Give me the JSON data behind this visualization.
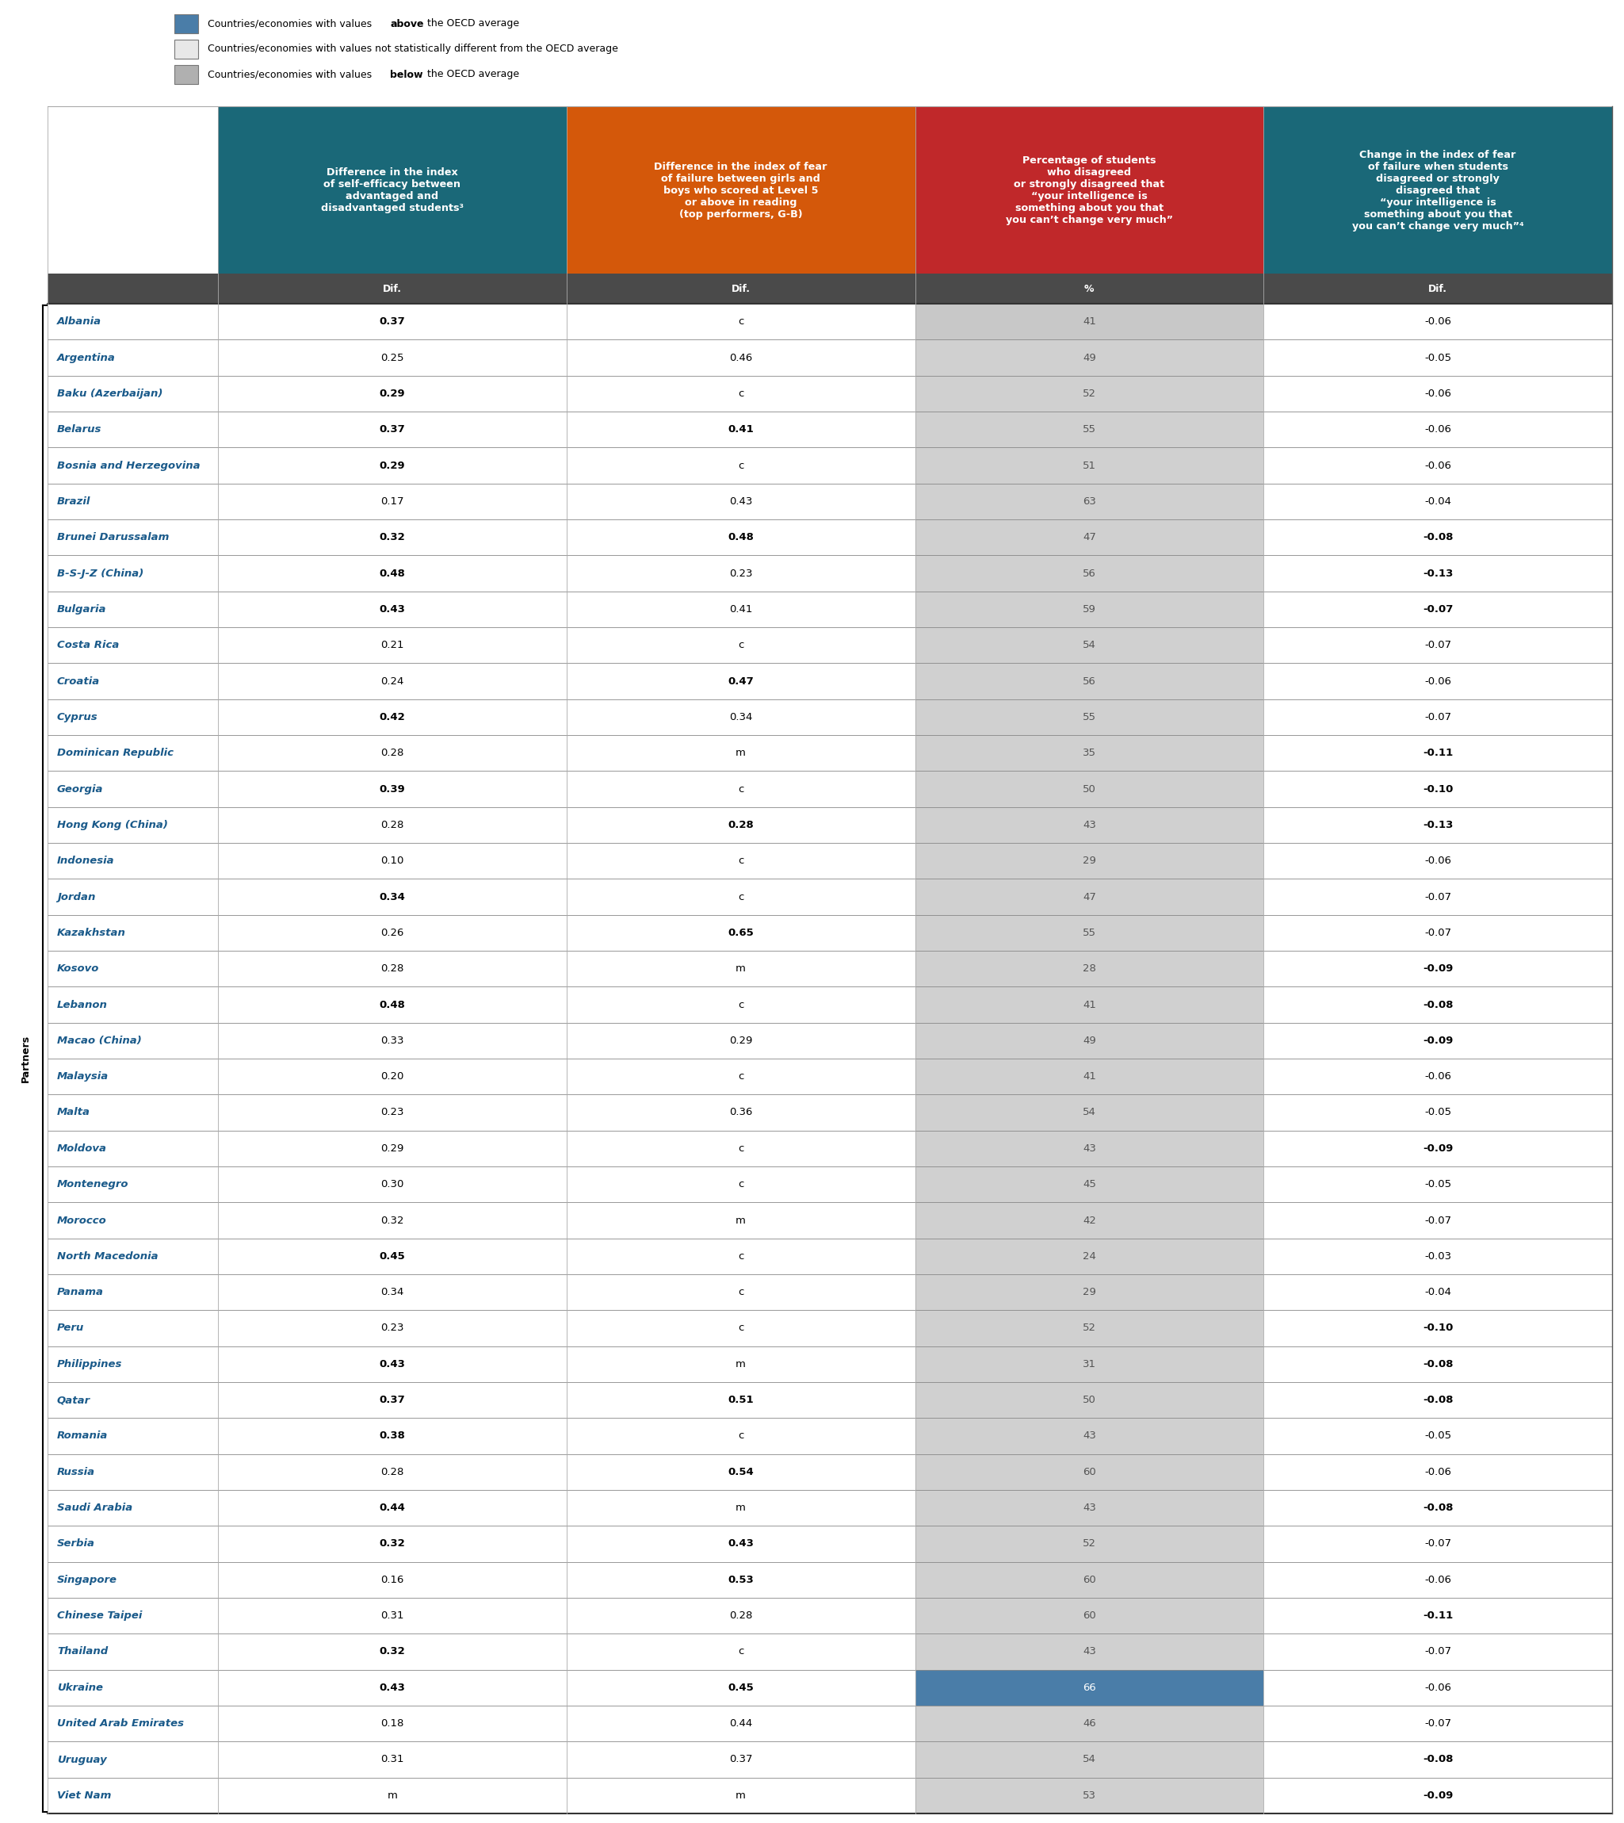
{
  "legend_colors": [
    "#4a7da8",
    "#e8e8e8",
    "#b0b0b0"
  ],
  "legend_texts": [
    [
      "Countries/economies with values ",
      "above",
      " the OECD average"
    ],
    [
      "Countries/economies with values not statistically different from the OECD average"
    ],
    [
      "Countries/economies with values ",
      "below",
      " the OECD average"
    ]
  ],
  "col_headers": [
    "Difference in the index\nof self-efficacy between\nadvantaged and\ndisadvantaged students³",
    "Difference in the index of fear\nof failure between girls and\nboys who scored at Level 5\nor above in reading\n(top performers, G-B)",
    "Percentage of students\nwho disagreed\nor strongly disagreed that\n“your intelligence is\nsomething about you that\nyou can’t change very much”",
    "Change in the index of fear\nof failure when students\ndisagreed or strongly\ndisagreed that\n“your intelligence is\nsomething about you that\nyou can’t change very much”⁴"
  ],
  "col_units": [
    "Dif.",
    "Dif.",
    "%",
    "Dif."
  ],
  "col_header_colors": [
    "#1a6878",
    "#d4580a",
    "#c0282a",
    "#1a6878"
  ],
  "col_unit_bg": "#4a4a4a",
  "rows": [
    {
      "country": "Albania",
      "c1": "0.37",
      "c2": "c",
      "c3": "41",
      "c4": "-0.06",
      "c1b": true,
      "c2b": false,
      "c3b": false,
      "c4b": false,
      "c3_bg": "gray_light"
    },
    {
      "country": "Argentina",
      "c1": "0.25",
      "c2": "0.46",
      "c3": "49",
      "c4": "-0.05",
      "c1b": false,
      "c2b": false,
      "c3b": false,
      "c4b": false,
      "c3_bg": "gray"
    },
    {
      "country": "Baku (Azerbaijan)",
      "c1": "0.29",
      "c2": "c",
      "c3": "52",
      "c4": "-0.06",
      "c1b": true,
      "c2b": false,
      "c3b": false,
      "c4b": false,
      "c3_bg": "gray"
    },
    {
      "country": "Belarus",
      "c1": "0.37",
      "c2": "0.41",
      "c3": "55",
      "c4": "-0.06",
      "c1b": true,
      "c2b": true,
      "c3b": false,
      "c4b": false,
      "c3_bg": "gray"
    },
    {
      "country": "Bosnia and Herzegovina",
      "c1": "0.29",
      "c2": "c",
      "c3": "51",
      "c4": "-0.06",
      "c1b": true,
      "c2b": false,
      "c3b": false,
      "c4b": false,
      "c3_bg": "gray"
    },
    {
      "country": "Brazil",
      "c1": "0.17",
      "c2": "0.43",
      "c3": "63",
      "c4": "-0.04",
      "c1b": false,
      "c2b": false,
      "c3b": false,
      "c4b": false,
      "c3_bg": "gray"
    },
    {
      "country": "Brunei Darussalam",
      "c1": "0.32",
      "c2": "0.48",
      "c3": "47",
      "c4": "-0.08",
      "c1b": true,
      "c2b": true,
      "c3b": false,
      "c4b": true,
      "c3_bg": "gray"
    },
    {
      "country": "B-S-J-Z (China)",
      "c1": "0.48",
      "c2": "0.23",
      "c3": "56",
      "c4": "-0.13",
      "c1b": true,
      "c2b": false,
      "c3b": false,
      "c4b": true,
      "c3_bg": "gray"
    },
    {
      "country": "Bulgaria",
      "c1": "0.43",
      "c2": "0.41",
      "c3": "59",
      "c4": "-0.07",
      "c1b": true,
      "c2b": false,
      "c3b": false,
      "c4b": true,
      "c3_bg": "gray"
    },
    {
      "country": "Costa Rica",
      "c1": "0.21",
      "c2": "c",
      "c3": "54",
      "c4": "-0.07",
      "c1b": false,
      "c2b": false,
      "c3b": false,
      "c4b": false,
      "c3_bg": "gray"
    },
    {
      "country": "Croatia",
      "c1": "0.24",
      "c2": "0.47",
      "c3": "56",
      "c4": "-0.06",
      "c1b": false,
      "c2b": true,
      "c3b": false,
      "c4b": false,
      "c3_bg": "gray"
    },
    {
      "country": "Cyprus",
      "c1": "0.42",
      "c2": "0.34",
      "c3": "55",
      "c4": "-0.07",
      "c1b": true,
      "c2b": false,
      "c3b": false,
      "c4b": false,
      "c3_bg": "gray"
    },
    {
      "country": "Dominican Republic",
      "c1": "0.28",
      "c2": "m",
      "c3": "35",
      "c4": "-0.11",
      "c1b": false,
      "c2b": false,
      "c3b": false,
      "c4b": true,
      "c3_bg": "gray"
    },
    {
      "country": "Georgia",
      "c1": "0.39",
      "c2": "c",
      "c3": "50",
      "c4": "-0.10",
      "c1b": true,
      "c2b": false,
      "c3b": false,
      "c4b": true,
      "c3_bg": "gray"
    },
    {
      "country": "Hong Kong (China)",
      "c1": "0.28",
      "c2": "0.28",
      "c3": "43",
      "c4": "-0.13",
      "c1b": false,
      "c2b": true,
      "c3b": false,
      "c4b": true,
      "c3_bg": "gray"
    },
    {
      "country": "Indonesia",
      "c1": "0.10",
      "c2": "c",
      "c3": "29",
      "c4": "-0.06",
      "c1b": false,
      "c2b": false,
      "c3b": false,
      "c4b": false,
      "c3_bg": "gray"
    },
    {
      "country": "Jordan",
      "c1": "0.34",
      "c2": "c",
      "c3": "47",
      "c4": "-0.07",
      "c1b": true,
      "c2b": false,
      "c3b": false,
      "c4b": false,
      "c3_bg": "gray"
    },
    {
      "country": "Kazakhstan",
      "c1": "0.26",
      "c2": "0.65",
      "c3": "55",
      "c4": "-0.07",
      "c1b": false,
      "c2b": true,
      "c3b": false,
      "c4b": false,
      "c3_bg": "gray"
    },
    {
      "country": "Kosovo",
      "c1": "0.28",
      "c2": "m",
      "c3": "28",
      "c4": "-0.09",
      "c1b": false,
      "c2b": false,
      "c3b": false,
      "c4b": true,
      "c3_bg": "gray"
    },
    {
      "country": "Lebanon",
      "c1": "0.48",
      "c2": "c",
      "c3": "41",
      "c4": "-0.08",
      "c1b": true,
      "c2b": false,
      "c3b": false,
      "c4b": true,
      "c3_bg": "gray"
    },
    {
      "country": "Macao (China)",
      "c1": "0.33",
      "c2": "0.29",
      "c3": "49",
      "c4": "-0.09",
      "c1b": false,
      "c2b": false,
      "c3b": false,
      "c4b": true,
      "c3_bg": "gray"
    },
    {
      "country": "Malaysia",
      "c1": "0.20",
      "c2": "c",
      "c3": "41",
      "c4": "-0.06",
      "c1b": false,
      "c2b": false,
      "c3b": false,
      "c4b": false,
      "c3_bg": "gray"
    },
    {
      "country": "Malta",
      "c1": "0.23",
      "c2": "0.36",
      "c3": "54",
      "c4": "-0.05",
      "c1b": false,
      "c2b": false,
      "c3b": false,
      "c4b": false,
      "c3_bg": "gray"
    },
    {
      "country": "Moldova",
      "c1": "0.29",
      "c2": "c",
      "c3": "43",
      "c4": "-0.09",
      "c1b": false,
      "c2b": false,
      "c3b": false,
      "c4b": true,
      "c3_bg": "gray"
    },
    {
      "country": "Montenegro",
      "c1": "0.30",
      "c2": "c",
      "c3": "45",
      "c4": "-0.05",
      "c1b": false,
      "c2b": false,
      "c3b": false,
      "c4b": false,
      "c3_bg": "gray"
    },
    {
      "country": "Morocco",
      "c1": "0.32",
      "c2": "m",
      "c3": "42",
      "c4": "-0.07",
      "c1b": false,
      "c2b": false,
      "c3b": false,
      "c4b": false,
      "c3_bg": "gray"
    },
    {
      "country": "North Macedonia",
      "c1": "0.45",
      "c2": "c",
      "c3": "24",
      "c4": "-0.03",
      "c1b": true,
      "c2b": false,
      "c3b": false,
      "c4b": false,
      "c3_bg": "gray"
    },
    {
      "country": "Panama",
      "c1": "0.34",
      "c2": "c",
      "c3": "29",
      "c4": "-0.04",
      "c1b": false,
      "c2b": false,
      "c3b": false,
      "c4b": false,
      "c3_bg": "gray"
    },
    {
      "country": "Peru",
      "c1": "0.23",
      "c2": "c",
      "c3": "52",
      "c4": "-0.10",
      "c1b": false,
      "c2b": false,
      "c3b": false,
      "c4b": true,
      "c3_bg": "gray"
    },
    {
      "country": "Philippines",
      "c1": "0.43",
      "c2": "m",
      "c3": "31",
      "c4": "-0.08",
      "c1b": true,
      "c2b": false,
      "c3b": false,
      "c4b": true,
      "c3_bg": "gray"
    },
    {
      "country": "Qatar",
      "c1": "0.37",
      "c2": "0.51",
      "c3": "50",
      "c4": "-0.08",
      "c1b": true,
      "c2b": true,
      "c3b": false,
      "c4b": true,
      "c3_bg": "gray"
    },
    {
      "country": "Romania",
      "c1": "0.38",
      "c2": "c",
      "c3": "43",
      "c4": "-0.05",
      "c1b": true,
      "c2b": false,
      "c3b": false,
      "c4b": false,
      "c3_bg": "gray"
    },
    {
      "country": "Russia",
      "c1": "0.28",
      "c2": "0.54",
      "c3": "60",
      "c4": "-0.06",
      "c1b": false,
      "c2b": true,
      "c3b": false,
      "c4b": false,
      "c3_bg": "gray"
    },
    {
      "country": "Saudi Arabia",
      "c1": "0.44",
      "c2": "m",
      "c3": "43",
      "c4": "-0.08",
      "c1b": true,
      "c2b": false,
      "c3b": false,
      "c4b": true,
      "c3_bg": "gray"
    },
    {
      "country": "Serbia",
      "c1": "0.32",
      "c2": "0.43",
      "c3": "52",
      "c4": "-0.07",
      "c1b": true,
      "c2b": true,
      "c3b": false,
      "c4b": false,
      "c3_bg": "gray"
    },
    {
      "country": "Singapore",
      "c1": "0.16",
      "c2": "0.53",
      "c3": "60",
      "c4": "-0.06",
      "c1b": false,
      "c2b": true,
      "c3b": false,
      "c4b": false,
      "c3_bg": "gray"
    },
    {
      "country": "Chinese Taipei",
      "c1": "0.31",
      "c2": "0.28",
      "c3": "60",
      "c4": "-0.11",
      "c1b": false,
      "c2b": false,
      "c3b": false,
      "c4b": true,
      "c3_bg": "gray"
    },
    {
      "country": "Thailand",
      "c1": "0.32",
      "c2": "c",
      "c3": "43",
      "c4": "-0.07",
      "c1b": true,
      "c2b": false,
      "c3b": false,
      "c4b": false,
      "c3_bg": "gray"
    },
    {
      "country": "Ukraine",
      "c1": "0.43",
      "c2": "0.45",
      "c3": "66",
      "c4": "-0.06",
      "c1b": true,
      "c2b": true,
      "c3b": false,
      "c4b": false,
      "c3_bg": "blue"
    },
    {
      "country": "United Arab Emirates",
      "c1": "0.18",
      "c2": "0.44",
      "c3": "46",
      "c4": "-0.07",
      "c1b": false,
      "c2b": false,
      "c3b": false,
      "c4b": false,
      "c3_bg": "gray"
    },
    {
      "country": "Uruguay",
      "c1": "0.31",
      "c2": "0.37",
      "c3": "54",
      "c4": "-0.08",
      "c1b": false,
      "c2b": false,
      "c3b": false,
      "c4b": true,
      "c3_bg": "gray"
    },
    {
      "country": "Viet Nam",
      "c1": "m",
      "c2": "m",
      "c3": "53",
      "c4": "-0.09",
      "c1b": false,
      "c2b": false,
      "c3b": false,
      "c4b": true,
      "c3_bg": "gray"
    }
  ]
}
